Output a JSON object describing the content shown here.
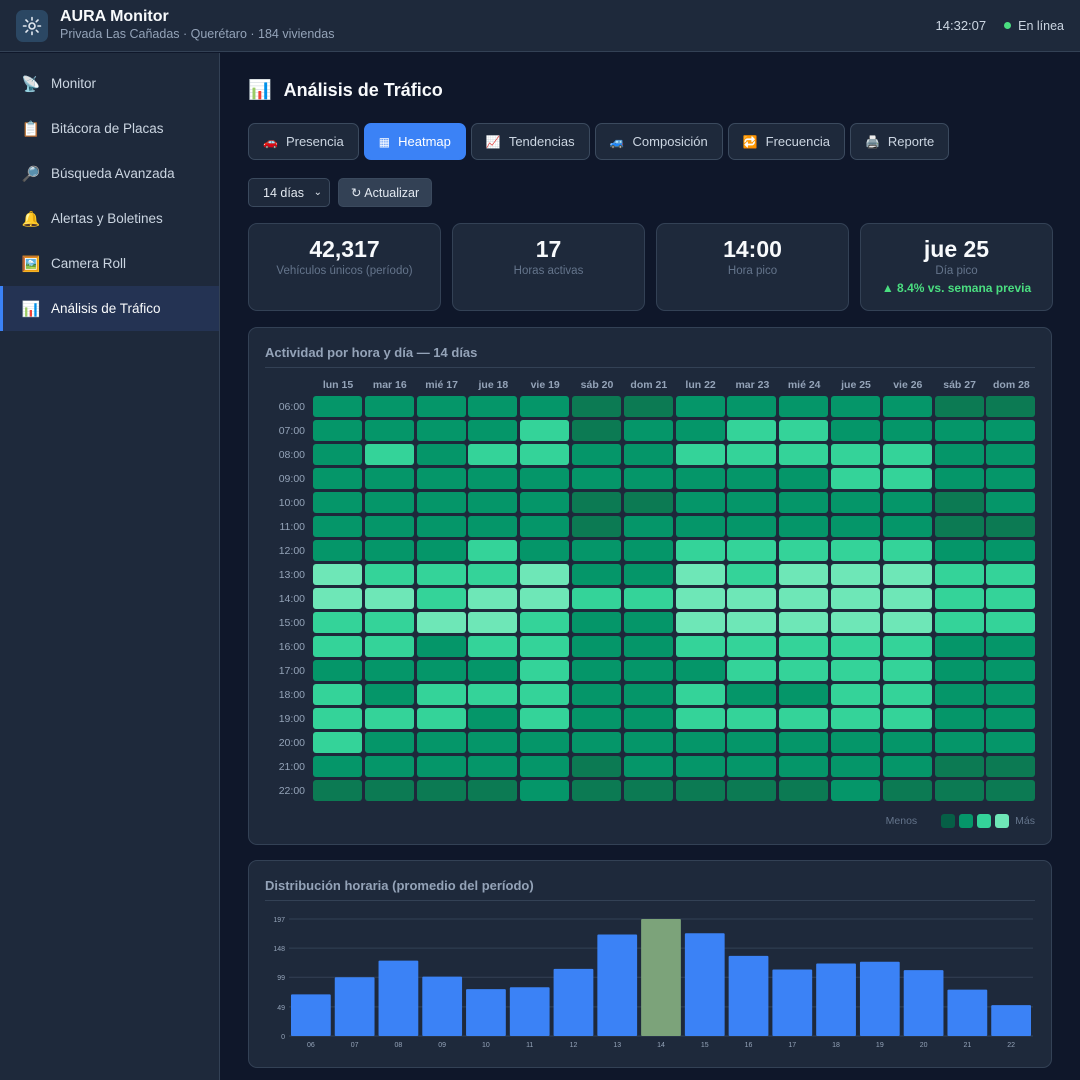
{
  "header": {
    "title": "AURA Monitor",
    "subtitle": "Privada Las Cañadas · Querétaro · 184 viviendas",
    "time": "14:32:07",
    "status": "En línea"
  },
  "sidebar": {
    "items": [
      {
        "label": "Monitor",
        "icon": "📡"
      },
      {
        "label": "Bitácora de Placas",
        "icon": "📋"
      },
      {
        "label": "Búsqueda Avanzada",
        "icon": "🔎"
      },
      {
        "label": "Alertas y Boletines",
        "icon": "🔔"
      },
      {
        "label": "Camera Roll",
        "icon": "🖼️"
      },
      {
        "label": "Análisis de Tráfico",
        "icon": "📊"
      }
    ],
    "active_index": 5
  },
  "main": {
    "title": "Análisis de Tráfico",
    "title_icon": "📊",
    "tabs": [
      {
        "label": "Presencia",
        "icon": "🚗"
      },
      {
        "label": "Heatmap",
        "icon": "▦"
      },
      {
        "label": "Tendencias",
        "icon": "📈"
      },
      {
        "label": "Composición",
        "icon": "🚙"
      },
      {
        "label": "Frecuencia",
        "icon": "🔁"
      },
      {
        "label": "Reporte",
        "icon": "🖨️"
      }
    ],
    "active_tab": 1,
    "range_select": "14 días",
    "refresh_label": "↻ Actualizar"
  },
  "stats": [
    {
      "value": "42,317",
      "label": "Vehículos únicos (período)"
    },
    {
      "value": "17",
      "label": "Horas activas"
    },
    {
      "value": "14:00",
      "label": "Hora pico"
    },
    {
      "value": "jue 25",
      "label": "Día pico",
      "delta": "▲ 8.4% vs. semana previa"
    }
  ],
  "heatmap": {
    "title": "Actividad por hora y día — 14 días",
    "days": [
      "lun 15",
      "mar 16",
      "mié 17",
      "jue 18",
      "vie 19",
      "sáb 20",
      "dom 21",
      "lun 22",
      "mar 23",
      "mié 24",
      "jue 25",
      "vie 26",
      "sáb 27",
      "dom 28"
    ],
    "hours": [
      "06:00",
      "07:00",
      "08:00",
      "09:00",
      "10:00",
      "11:00",
      "12:00",
      "13:00",
      "14:00",
      "15:00",
      "16:00",
      "17:00",
      "18:00",
      "19:00",
      "20:00",
      "21:00",
      "22:00"
    ],
    "levels": [
      [
        2,
        2,
        2,
        2,
        2,
        1,
        1,
        2,
        2,
        2,
        2,
        2,
        1,
        1
      ],
      [
        2,
        2,
        2,
        2,
        3,
        1,
        2,
        2,
        3,
        3,
        2,
        2,
        2,
        2
      ],
      [
        2,
        3,
        2,
        3,
        3,
        2,
        2,
        3,
        3,
        3,
        3,
        3,
        2,
        2
      ],
      [
        2,
        2,
        2,
        2,
        2,
        2,
        2,
        2,
        2,
        2,
        3,
        3,
        2,
        2
      ],
      [
        2,
        2,
        2,
        2,
        2,
        1,
        1,
        2,
        2,
        2,
        2,
        2,
        1,
        2
      ],
      [
        2,
        2,
        2,
        2,
        2,
        1,
        2,
        2,
        2,
        2,
        2,
        2,
        1,
        1
      ],
      [
        2,
        2,
        2,
        3,
        2,
        2,
        2,
        3,
        3,
        3,
        3,
        3,
        2,
        2
      ],
      [
        4,
        3,
        3,
        3,
        4,
        2,
        2,
        4,
        3,
        4,
        4,
        4,
        3,
        3
      ],
      [
        4,
        4,
        3,
        4,
        4,
        3,
        3,
        4,
        4,
        4,
        4,
        4,
        3,
        3
      ],
      [
        3,
        3,
        4,
        4,
        3,
        2,
        2,
        4,
        4,
        4,
        4,
        4,
        3,
        3
      ],
      [
        3,
        3,
        2,
        3,
        3,
        2,
        2,
        3,
        3,
        3,
        3,
        3,
        2,
        2
      ],
      [
        2,
        2,
        2,
        2,
        3,
        2,
        2,
        2,
        3,
        3,
        3,
        3,
        2,
        2
      ],
      [
        3,
        2,
        3,
        3,
        3,
        2,
        2,
        3,
        2,
        2,
        3,
        3,
        2,
        2
      ],
      [
        3,
        3,
        3,
        2,
        3,
        2,
        2,
        3,
        3,
        3,
        3,
        3,
        2,
        2
      ],
      [
        3,
        2,
        2,
        2,
        2,
        2,
        2,
        2,
        2,
        2,
        2,
        2,
        2,
        2
      ],
      [
        2,
        2,
        2,
        2,
        2,
        1,
        2,
        2,
        2,
        2,
        2,
        2,
        1,
        1
      ],
      [
        1,
        1,
        1,
        1,
        2,
        1,
        1,
        1,
        1,
        1,
        2,
        1,
        1,
        1
      ]
    ],
    "palette": [
      "#065f46",
      "#0c7a53",
      "#059669",
      "#34d399",
      "#6ee7b7"
    ],
    "legend": {
      "low": "Menos",
      "high": "Más"
    }
  },
  "chart_data": {
    "type": "bar",
    "title": "Distribución horaria (promedio del período)",
    "categories": [
      "06",
      "07",
      "08",
      "09",
      "10",
      "11",
      "12",
      "13",
      "14",
      "15",
      "16",
      "17",
      "18",
      "19",
      "20",
      "21",
      "22"
    ],
    "values": [
      70,
      99,
      127,
      100,
      79,
      82,
      113,
      171,
      197,
      173,
      135,
      112,
      122,
      125,
      111,
      78,
      52
    ],
    "yticks": [
      0,
      49,
      99,
      148,
      197
    ],
    "ylim": [
      0,
      197
    ],
    "highlight_index": 8,
    "colors": {
      "bar": "#3b82f6",
      "highlight": "#7ca37a"
    }
  }
}
